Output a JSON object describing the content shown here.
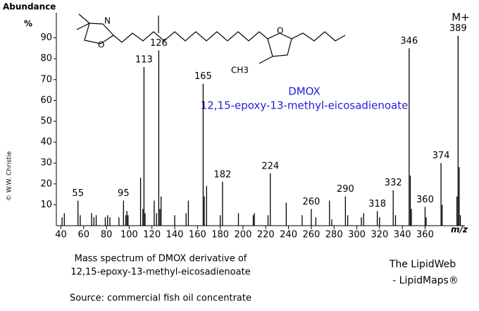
{
  "chart_data": {
    "type": "bar",
    "y_label": "Abundance",
    "y_unit": "%",
    "x_label": "m/z",
    "copyright": "© W.W. Christie",
    "title": "DMOX",
    "subtitle": "12,15-epoxy-13-methyl-eicosadienoate",
    "molecular_ion_label": "M+",
    "structure_labels": [
      "N",
      "O",
      "O",
      "CH3"
    ],
    "caption": [
      "Mass spectrum of DMOX derivative of",
      "12,15-epoxy-13-methyl-eicosadienoate",
      "Source: commercial fish oil concentrate"
    ],
    "credit": [
      "The LipidWeb",
      "- LipidMaps®"
    ],
    "xlim": [
      36,
      395
    ],
    "ylim": [
      0,
      100
    ],
    "xticks": [
      40,
      60,
      80,
      100,
      120,
      140,
      160,
      180,
      200,
      220,
      240,
      260,
      280,
      300,
      320,
      340,
      360
    ],
    "yticks": [
      10,
      20,
      30,
      40,
      50,
      60,
      70,
      80,
      90
    ],
    "series": [
      {
        "color": "#000000",
        "show_labels": true,
        "x": [
          55,
          95,
          113,
          126,
          165,
          182,
          224,
          260,
          290,
          318,
          332,
          346,
          360,
          374,
          389
        ],
        "values": [
          12,
          12,
          76,
          84,
          68,
          21,
          25,
          8,
          14,
          7,
          17,
          85,
          9,
          30,
          91
        ]
      },
      {
        "color": "#000000",
        "show_labels": false,
        "x": [
          41,
          43,
          57,
          67,
          69,
          71,
          79,
          81,
          83,
          91,
          97,
          98,
          99,
          110,
          112,
          114,
          122,
          124,
          127,
          128,
          140,
          150,
          152,
          166,
          168,
          180,
          196,
          209,
          210,
          222,
          238,
          252,
          264,
          276,
          278,
          292,
          304,
          306,
          320,
          334,
          347,
          348,
          361,
          375,
          388,
          390,
          391
        ],
        "values": [
          4,
          6,
          5,
          6,
          4,
          5,
          4,
          5,
          4,
          4,
          5,
          7,
          5,
          23,
          8,
          6,
          12,
          6,
          8,
          14,
          5,
          6,
          12,
          14,
          19,
          5,
          6,
          5,
          6,
          5,
          11,
          5,
          4,
          12,
          3,
          5,
          4,
          6,
          4,
          5,
          24,
          8,
          4,
          10,
          14,
          28,
          5
        ]
      }
    ]
  }
}
